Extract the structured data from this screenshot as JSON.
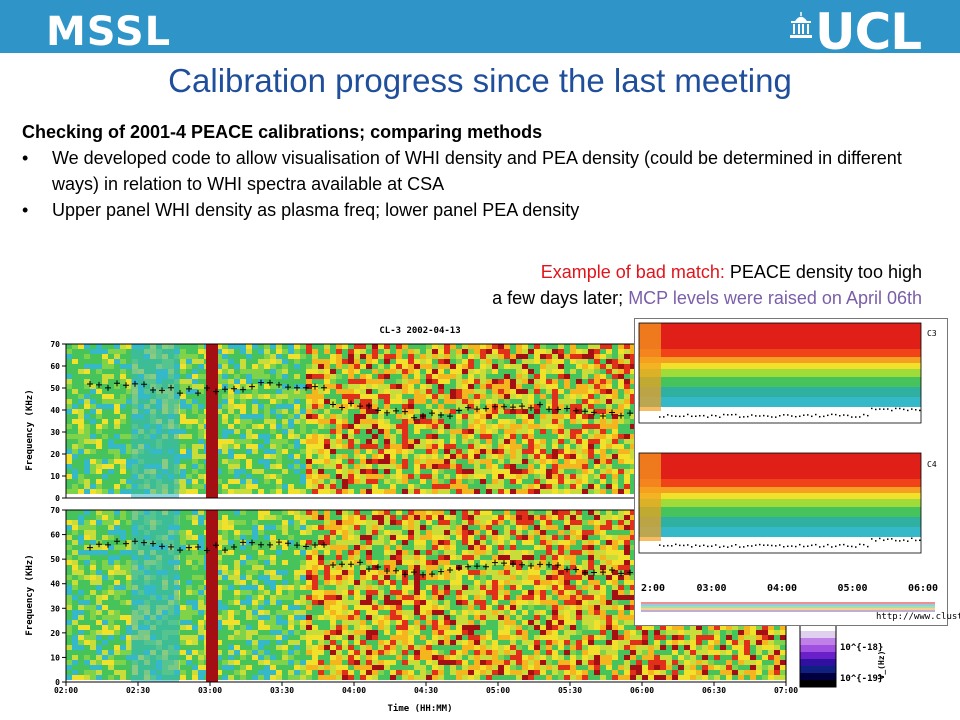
{
  "header": {
    "left_logo": "MSSL",
    "right_logo": "UCL",
    "colors": {
      "banner": "#2f95c8",
      "title": "#1f4e9b",
      "red": "#e0141b",
      "purple": "#7b5ea8"
    }
  },
  "title": "Calibration progress since the last meeting",
  "body": {
    "heading": "Checking of 2001-4 PEACE calibrations; comparing methods",
    "bullets": [
      "We developed code to allow visualisation of WHI density and PEA density (could be determined in different ways) in relation to WHI spectra available at CSA",
      "Upper panel WHI density as plasma freq; lower panel PEA density"
    ],
    "bullet_glyph": "•"
  },
  "example": {
    "red_part": "Example of bad match:",
    "black_part": " PEACE density too high",
    "line2_black": "a few days later; ",
    "line2_purple": "MCP levels were raised on April 06th"
  },
  "main_plot": {
    "title": "CL-3 2002-04-13",
    "ylabel": "Frequency (KHz)",
    "xlabel": "Time (HH:MM)",
    "yticks": [
      "70",
      "60",
      "50",
      "40",
      "30",
      "20",
      "10",
      "0"
    ],
    "xticks": [
      "02:00",
      "02:30",
      "03:00",
      "03:30",
      "04:00",
      "04:30",
      "05:00",
      "05:30",
      "06:00",
      "06:30",
      "07:00"
    ]
  },
  "inset": {
    "panel_labels": [
      "C3",
      "C4"
    ],
    "xticks": [
      "2:00",
      "03:00",
      "04:00",
      "05:00",
      "06:00"
    ],
    "url": "http://www.cluster."
  },
  "colorbar": {
    "labels": [
      "10^{-18}",
      "10^{-19}"
    ],
    "unit": "V_(Hz)"
  }
}
